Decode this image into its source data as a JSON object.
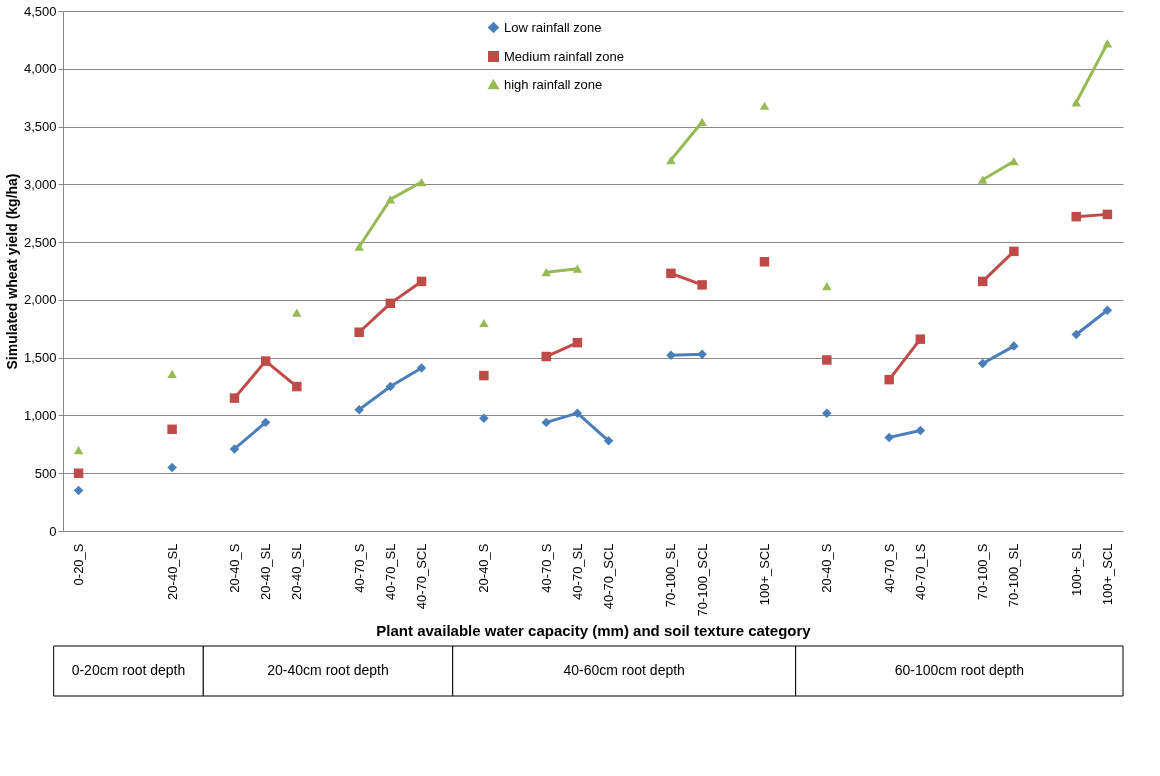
{
  "chart_data": {
    "type": "line",
    "ylabel": "Simulated wheat yield (kg/ha)",
    "xlabel": "Plant available water capacity (mm) and soil texture category",
    "categories": [
      "0-20_S",
      null,
      null,
      "20-40_SL",
      null,
      "20-40_S",
      "20-40_SL",
      "20-40_SL",
      null,
      "40-70_S",
      "40-70_SL",
      "40-70_SCL",
      null,
      "20-40_S",
      null,
      "40-70_S",
      "40-70_SL",
      "40-70_SCL",
      null,
      "70-100_SL",
      "70-100_SCL",
      null,
      "100+_SCL",
      null,
      "20-40_S",
      null,
      "40-70_S",
      "40-70_LS",
      null,
      "70-100_S",
      "70-100_SL",
      null,
      "100+_SL",
      "100+_SCL"
    ],
    "series": [
      {
        "name": "Low rainfall zone",
        "color": "#4a7ebb",
        "marker": "diamond",
        "values": [
          350,
          null,
          null,
          550,
          null,
          710,
          940,
          null,
          null,
          1050,
          1250,
          1410,
          null,
          975,
          null,
          940,
          1020,
          780,
          null,
          1520,
          1530,
          null,
          null,
          null,
          1020,
          null,
          810,
          870,
          null,
          1450,
          1600,
          null,
          1700,
          1910
        ]
      },
      {
        "name": "Medium rainfall zone",
        "color": "#be4b48",
        "marker": "square",
        "values": [
          500,
          null,
          null,
          880,
          null,
          1150,
          1470,
          1250,
          null,
          1720,
          1970,
          2160,
          null,
          1345,
          null,
          1510,
          1630,
          null,
          null,
          2230,
          2130,
          null,
          2330,
          null,
          1480,
          null,
          1310,
          1660,
          null,
          2160,
          2420,
          null,
          2720,
          2740
        ]
      },
      {
        "name": "high rainfall zone",
        "color": "#98b954",
        "marker": "triangle",
        "values": [
          700,
          null,
          null,
          1360,
          null,
          null,
          null,
          1890,
          null,
          2460,
          2870,
          3020,
          null,
          1800,
          null,
          2240,
          2270,
          null,
          null,
          3210,
          3540,
          null,
          3680,
          null,
          2120,
          null,
          null,
          null,
          null,
          3040,
          3200,
          null,
          3710,
          4220
        ]
      }
    ],
    "ylim": [
      0,
      4500
    ],
    "yticks": [
      0,
      500,
      {
        "value": 1000,
        "label": "1,000"
      },
      {
        "value": 1500,
        "label": "1,500"
      },
      {
        "value": 2000,
        "label": "2,000"
      },
      {
        "value": 2500,
        "label": "2,500"
      },
      {
        "value": 3000,
        "label": "3,000"
      },
      {
        "value": 3500,
        "label": "3,500"
      },
      {
        "value": 4000,
        "label": "4,000"
      },
      {
        "value": 4500,
        "label": "4,500"
      }
    ],
    "grid": "y",
    "legend": "top",
    "line_style": "solid",
    "annotations": [
      "0-20cm root depth",
      "20-40cm root depth",
      "40-60cm root depth",
      "60-100cm root depth"
    ]
  }
}
